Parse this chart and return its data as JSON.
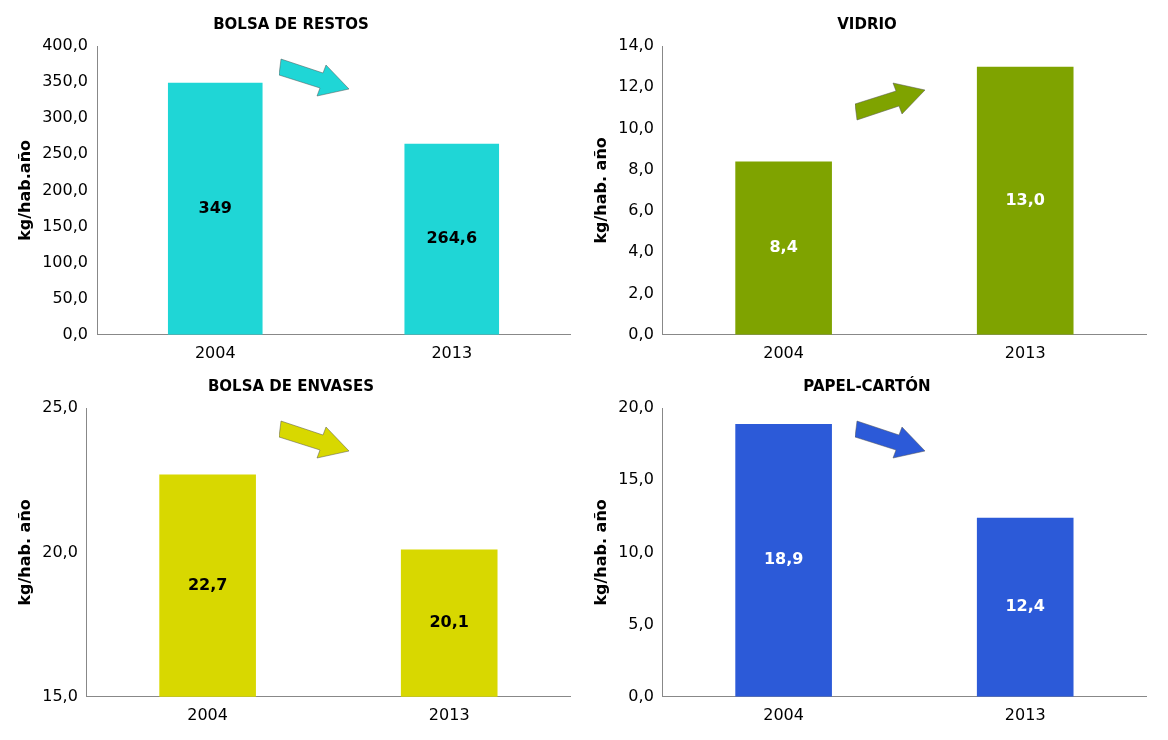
{
  "chart_data": [
    {
      "type": "bar",
      "title": "BOLSA DE RESTOS",
      "ylabel": "kg/hab.año",
      "categories": [
        "2004",
        "2013"
      ],
      "values": [
        349,
        264.6
      ],
      "value_labels": [
        "349",
        "264,6"
      ],
      "color": "#1fd6d6",
      "ylim": [
        0,
        400
      ],
      "yticks": [
        {
          "value": 0,
          "label": "0,0"
        },
        {
          "value": 50,
          "label": "50,0"
        },
        {
          "value": 100,
          "label": "100,0"
        },
        {
          "value": 150,
          "label": "150,0"
        },
        {
          "value": 200,
          "label": "200,0"
        },
        {
          "value": 250,
          "label": "250,0"
        },
        {
          "value": 300,
          "label": "300,0"
        },
        {
          "value": 350,
          "label": "350,0"
        },
        {
          "value": 400,
          "label": "400,0"
        }
      ],
      "grid": false,
      "legend": false
    },
    {
      "type": "bar",
      "title": "VIDRIO",
      "ylabel": "kg/hab. año",
      "categories": [
        "2004",
        "2013"
      ],
      "values": [
        8.4,
        13.0
      ],
      "value_labels": [
        "8,4",
        "13,0"
      ],
      "color": "#7fa300",
      "ylim": [
        0,
        14
      ],
      "yticks": [
        {
          "value": 0,
          "label": "0,0"
        },
        {
          "value": 2,
          "label": "2,0"
        },
        {
          "value": 4,
          "label": "4,0"
        },
        {
          "value": 6,
          "label": "6,0"
        },
        {
          "value": 8,
          "label": "8,0"
        },
        {
          "value": 10,
          "label": "10,0"
        },
        {
          "value": 12,
          "label": "12,0"
        },
        {
          "value": 14,
          "label": "14,0"
        }
      ],
      "grid": false,
      "legend": false
    },
    {
      "type": "bar",
      "title": "BOLSA DE ENVASES",
      "ylabel": "kg/hab. año",
      "categories": [
        "2004",
        "2013"
      ],
      "values": [
        22.7,
        20.1
      ],
      "value_labels": [
        "22,7",
        "20,1"
      ],
      "color": "#d8d800",
      "ylim": [
        15,
        25
      ],
      "yticks": [
        {
          "value": 15,
          "label": "15,0"
        },
        {
          "value": 20,
          "label": "20,0"
        },
        {
          "value": 25,
          "label": "25,0"
        }
      ],
      "grid": false,
      "legend": false
    },
    {
      "type": "bar",
      "title": "PAPEL-CARTÓN",
      "ylabel": "kg/hab. año",
      "categories": [
        "2004",
        "2013"
      ],
      "values": [
        18.9,
        12.4
      ],
      "value_labels": [
        "18,9",
        "12,4"
      ],
      "color": "#2c5ad8",
      "ylim": [
        0,
        20
      ],
      "yticks": [
        {
          "value": 0,
          "label": "0,0"
        },
        {
          "value": 5,
          "label": "5,0"
        },
        {
          "value": 10,
          "label": "10,0"
        },
        {
          "value": 15,
          "label": "15,0"
        },
        {
          "value": 20,
          "label": "20,0"
        }
      ],
      "grid": false,
      "legend": false
    }
  ]
}
